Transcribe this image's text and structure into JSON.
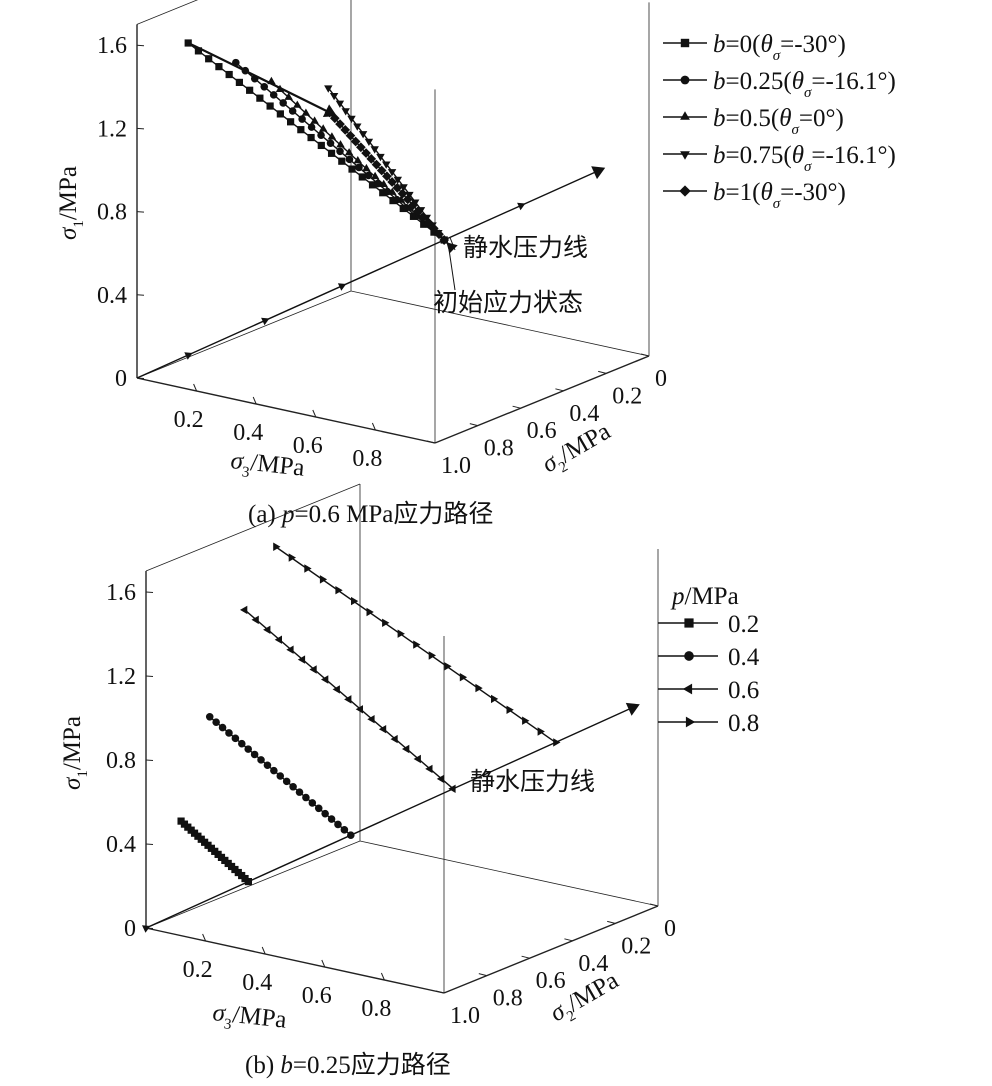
{
  "chart_data": [
    {
      "type": "line",
      "subtype": "3d-stress-path",
      "caption": {
        "prefix": "(a) ",
        "var": "p",
        "rest": "=0.6 MPa应力路径"
      },
      "axes": {
        "sigma1": {
          "sym": "σ",
          "sub": "1",
          "unit": "/MPa",
          "ticks": [
            "0",
            "0.4",
            "0.8",
            "1.2",
            "1.6"
          ],
          "range": [
            0,
            1.7
          ]
        },
        "sigma3": {
          "sym": "σ",
          "sub": "3",
          "unit": "/MPa",
          "ticks": [
            "0.2",
            "0.4",
            "0.6",
            "0.8"
          ],
          "range": [
            0,
            1.0
          ]
        },
        "sigma2": {
          "sym": "σ",
          "sub": "2",
          "unit": "/MPa",
          "ticks": [
            "0",
            "0.2",
            "0.4",
            "0.6",
            "0.8",
            "1.0"
          ],
          "range": [
            0,
            1.0
          ]
        }
      },
      "annotations": {
        "hydrostatic": "静水压力线",
        "initial_state": "初始应力状态"
      },
      "grid": false,
      "legend": {
        "position": "top-right",
        "entries": [
          {
            "b": "b",
            "bv": "=0(",
            "th": "θ",
            "sub": "σ",
            "rest": "=-30°)",
            "marker": "square"
          },
          {
            "b": "b",
            "bv": "=0.25(",
            "th": "θ",
            "sub": "σ",
            "rest": "=-16.1°)",
            "marker": "circle"
          },
          {
            "b": "b",
            "bv": "=0.5(",
            "th": "θ",
            "sub": "σ",
            "rest": "=0°)",
            "marker": "triangle-up"
          },
          {
            "b": "b",
            "bv": "=0.75(",
            "th": "θ",
            "sub": "σ",
            "rest": "=-16.1°)",
            "marker": "triangle-down"
          },
          {
            "b": "b",
            "bv": "=1(",
            "th": "θ",
            "sub": "σ",
            "rest": "=-30°)",
            "marker": "diamond"
          }
        ]
      },
      "series": [
        {
          "name": "b=0(θσ=-30°)",
          "marker": "square",
          "start": {
            "sigma1": 0.6,
            "sigma2": 0.6,
            "sigma3": 0.6
          },
          "end": {
            "sigma1": 1.6,
            "sigma2": 0.1,
            "sigma3": 0.1
          },
          "n": 25
        },
        {
          "name": "b=0.25(θσ=-16.1°)",
          "marker": "circle",
          "start": {
            "sigma1": 0.6,
            "sigma2": 0.6,
            "sigma3": 0.6
          },
          "end": {
            "sigma1": 1.35,
            "sigma2": 0.42,
            "sigma3": 0.03
          },
          "n": 22
        },
        {
          "name": "b=0.5(θσ=0°)",
          "marker": "triangle-up",
          "start": {
            "sigma1": 0.6,
            "sigma2": 0.6,
            "sigma3": 0.6
          },
          "end": {
            "sigma1": 1.18,
            "sigma2": 0.6,
            "sigma3": 0.02
          },
          "n": 20
        },
        {
          "name": "b=0.75(θσ=-16.1°)",
          "marker": "triangle-down",
          "start": {
            "sigma1": 0.6,
            "sigma2": 0.6,
            "sigma3": 0.6
          },
          "end": {
            "sigma1": 1.03,
            "sigma2": 0.88,
            "sigma3": 0.01
          },
          "n": 20
        },
        {
          "name": "b=1(θσ=-30°)",
          "marker": "diamond",
          "start": {
            "sigma1": 0.6,
            "sigma2": 0.6,
            "sigma3": 0.6
          },
          "end": {
            "sigma1": 0.9,
            "sigma2": 0.9,
            "sigma3": 0.0
          },
          "n": 22
        }
      ],
      "hydrostatic_line": {
        "from": 0.0,
        "to": 0.9,
        "marks": [
          0.1,
          0.25,
          0.4,
          0.6,
          0.75
        ]
      },
      "failure_arc": {
        "from_series": 0,
        "to_series": 4
      }
    },
    {
      "type": "line",
      "subtype": "3d-stress-path",
      "caption": {
        "prefix": "(b) ",
        "var": "b",
        "rest": "=0.25应力路径"
      },
      "axes": {
        "sigma1": {
          "sym": "σ",
          "sub": "1",
          "unit": "/MPa",
          "ticks": [
            "0",
            "0.4",
            "0.8",
            "1.2",
            "1.6"
          ],
          "range": [
            0,
            1.7
          ]
        },
        "sigma3": {
          "sym": "σ",
          "sub": "3",
          "unit": "/MPa",
          "ticks": [
            "0.2",
            "0.4",
            "0.6",
            "0.8"
          ],
          "range": [
            0,
            1.0
          ]
        },
        "sigma2": {
          "sym": "σ",
          "sub": "2",
          "unit": "/MPa",
          "ticks": [
            "0",
            "0.2",
            "0.4",
            "0.6",
            "0.8",
            "1.0"
          ],
          "range": [
            0,
            1.0
          ]
        }
      },
      "annotations": {
        "hydrostatic": "静水压力线"
      },
      "grid": false,
      "legend": {
        "position": "top-right",
        "title_var": "p",
        "title_unit": "/MPa",
        "entries": [
          {
            "label": "0.2",
            "marker": "square"
          },
          {
            "label": "0.4",
            "marker": "circle"
          },
          {
            "label": "0.6",
            "marker": "triangle-left"
          },
          {
            "label": "0.8",
            "marker": "triangle-right"
          }
        ]
      },
      "series": [
        {
          "name": "0.2",
          "marker": "square",
          "start": {
            "sigma1": 0.2,
            "sigma2": 0.2,
            "sigma3": 0.2
          },
          "end": {
            "sigma1": 0.45,
            "sigma2": 0.15,
            "sigma3": 0.01
          },
          "n": 20
        },
        {
          "name": "0.4",
          "marker": "circle",
          "start": {
            "sigma1": 0.4,
            "sigma2": 0.4,
            "sigma3": 0.4
          },
          "end": {
            "sigma1": 0.9,
            "sigma2": 0.27,
            "sigma3": 0.02
          },
          "n": 22
        },
        {
          "name": "0.6",
          "marker": "triangle-left",
          "start": {
            "sigma1": 0.6,
            "sigma2": 0.6,
            "sigma3": 0.6
          },
          "end": {
            "sigma1": 1.35,
            "sigma2": 0.42,
            "sigma3": 0.03
          },
          "n": 18
        },
        {
          "name": "0.8",
          "marker": "triangle-right",
          "start": {
            "sigma1": 0.8,
            "sigma2": 0.8,
            "sigma3": 0.8
          },
          "end": {
            "sigma1": 1.6,
            "sigma2": 0.55,
            "sigma3": 0.04
          },
          "n": 18
        }
      ],
      "hydrostatic_line": {
        "from": 0.0,
        "to": 0.95,
        "marks": [
          0.0
        ]
      }
    }
  ]
}
